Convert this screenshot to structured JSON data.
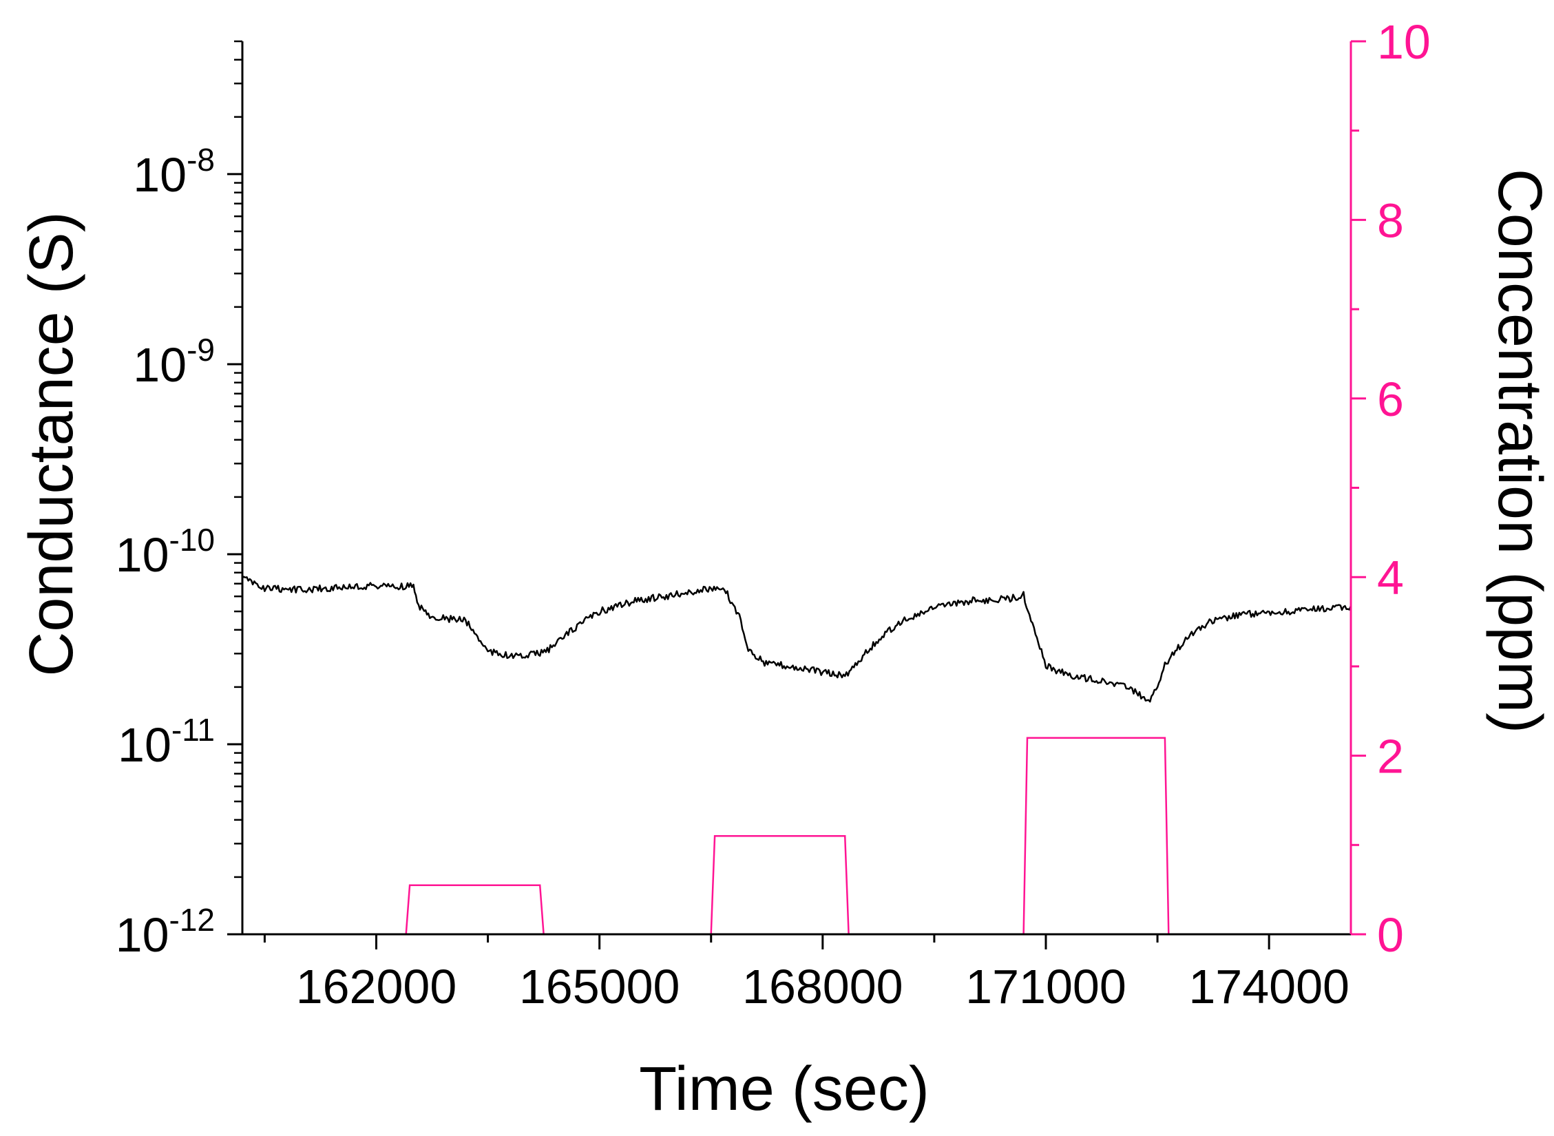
{
  "colors": {
    "conductance": "#000000",
    "concentration": "#ff1493",
    "axis_left": "#000000",
    "axis_right": "#ff1493"
  },
  "chart_data": {
    "type": "line",
    "title": "",
    "xlabel": "Time (sec)",
    "ylabel": "Conductance (S)",
    "y2label": "Concentration (ppm)",
    "xlim": [
      160200,
      175100
    ],
    "ylim": [
      1e-12,
      5e-08
    ],
    "yscale": "log",
    "y2lim": [
      0,
      10
    ],
    "grid": false,
    "x_ticks": [
      162000,
      165000,
      168000,
      171000,
      174000
    ],
    "x_tick_labels": [
      "162000",
      "165000",
      "168000",
      "171000",
      "174000"
    ],
    "y_ticks": [
      {
        "value": 1e-12,
        "base": "10",
        "exp": "-12"
      },
      {
        "value": 1e-11,
        "base": "10",
        "exp": "-11"
      },
      {
        "value": 1e-10,
        "base": "10",
        "exp": "-10"
      },
      {
        "value": 1e-09,
        "base": "10",
        "exp": "-9"
      },
      {
        "value": 1e-08,
        "base": "10",
        "exp": "-8"
      }
    ],
    "y2_ticks": [
      0,
      2,
      4,
      6,
      8,
      10
    ],
    "y2_tick_labels": [
      "0",
      "2",
      "4",
      "6",
      "8",
      "10"
    ],
    "series": [
      {
        "axis": "left",
        "x": [
          160200,
          160500,
          161000,
          161500,
          162000,
          162500,
          162550,
          162700,
          162900,
          163200,
          163500,
          163800,
          164000,
          164300,
          164700,
          165000,
          165500,
          166000,
          166500,
          166700,
          166900,
          167000,
          167200,
          167500,
          168000,
          168300,
          168700,
          169000,
          169500,
          170000,
          170500,
          170700,
          170800,
          170900,
          171000,
          171300,
          171600,
          171900,
          172200,
          172400,
          172600,
          172900,
          173200,
          173600,
          174000,
          174500,
          175100
        ],
        "y": [
          7.5e-11,
          6.6e-11,
          6.5e-11,
          6.7e-11,
          6.8e-11,
          6.8e-11,
          5.5e-11,
          4.8e-11,
          4.6e-11,
          4.5e-11,
          3.1e-11,
          2.9e-11,
          2.9e-11,
          3.1e-11,
          4.2e-11,
          5e-11,
          5.7e-11,
          6.1e-11,
          6.6e-11,
          6.4e-11,
          4.5e-11,
          3.2e-11,
          2.7e-11,
          2.6e-11,
          2.4e-11,
          2.3e-11,
          3.4e-11,
          4.3e-11,
          5.2e-11,
          5.7e-11,
          5.8e-11,
          6.1e-11,
          4.6e-11,
          3.4e-11,
          2.6e-11,
          2.3e-11,
          2.2e-11,
          2.1e-11,
          1.9e-11,
          1.65e-11,
          2.6e-11,
          3.7e-11,
          4.4e-11,
          4.8e-11,
          4.9e-11,
          5.1e-11,
          5.3e-11
        ]
      },
      {
        "axis": "right",
        "x": [
          160200,
          162400,
          162450,
          164200,
          164250,
          166500,
          166550,
          168300,
          168350,
          170700,
          170750,
          172600,
          172650,
          175100
        ],
        "y": [
          0,
          0,
          0.55,
          0.55,
          0,
          0,
          1.1,
          1.1,
          0,
          0,
          2.2,
          2.2,
          0,
          0
        ]
      }
    ]
  }
}
